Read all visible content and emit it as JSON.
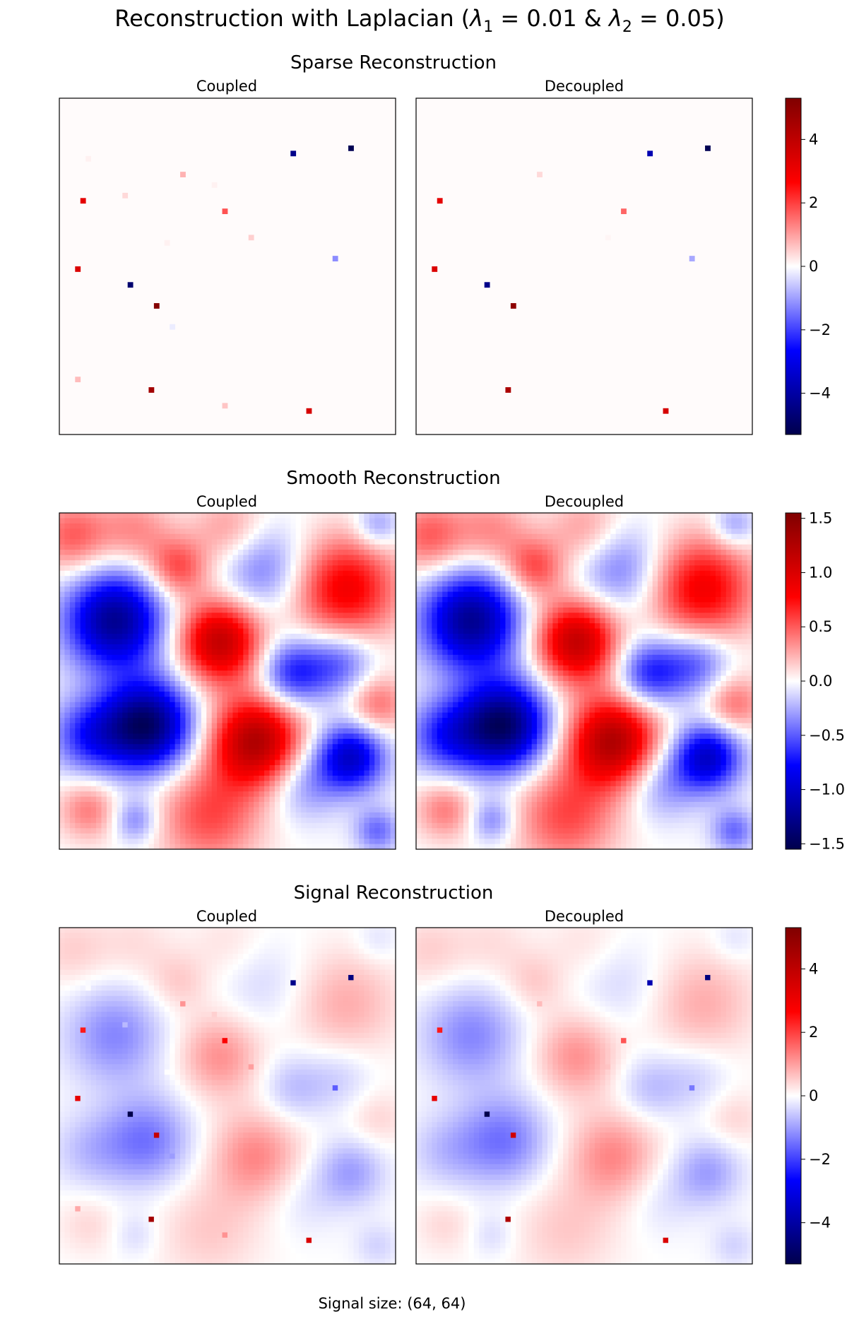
{
  "figure": {
    "title": "Reconstruction with Laplacian (λ₁ = 0.01 & λ₂ = 0.05)",
    "title_prefix": "Reconstruction with Laplacian (",
    "lambda_symbol": "λ",
    "lambda1_sub": "1",
    "lambda1_eq": " = 0.01 & ",
    "lambda2_sub": "2",
    "lambda2_eq": " = 0.05)",
    "footer": "Signal size: (64, 64)"
  },
  "colors": {
    "colormap": "seismic",
    "stops": [
      "#00004c",
      "#0000ff",
      "#ffffff",
      "#ff0000",
      "#800000"
    ],
    "sparse_background": "#fffbfb"
  },
  "chart_data": [
    {
      "type": "heatmap",
      "title": "Sparse Reconstruction",
      "grid_size": [
        64,
        64
      ],
      "panels": [
        {
          "title": "Coupled",
          "spikes": [
            {
              "x": 4,
              "y": 19,
              "value": 3.2
            },
            {
              "x": 3,
              "y": 32,
              "value": 3.4
            },
            {
              "x": 13,
              "y": 35,
              "value": -4.8
            },
            {
              "x": 18,
              "y": 39,
              "value": 5.2
            },
            {
              "x": 17,
              "y": 55,
              "value": 4.6
            },
            {
              "x": 31,
              "y": 21,
              "value": 1.8
            },
            {
              "x": 44,
              "y": 10,
              "value": -4.4
            },
            {
              "x": 55,
              "y": 9,
              "value": -5.2
            },
            {
              "x": 52,
              "y": 30,
              "value": -1.2
            },
            {
              "x": 47,
              "y": 59,
              "value": 3.5
            },
            {
              "x": 23,
              "y": 14,
              "value": 0.8
            },
            {
              "x": 12,
              "y": 18,
              "value": 0.4
            },
            {
              "x": 36,
              "y": 26,
              "value": 0.5
            },
            {
              "x": 3,
              "y": 53,
              "value": 0.7
            },
            {
              "x": 31,
              "y": 58,
              "value": 0.6
            },
            {
              "x": 21,
              "y": 43,
              "value": -0.2
            },
            {
              "x": 5,
              "y": 11,
              "value": 0.15
            },
            {
              "x": 29,
              "y": 16,
              "value": 0.15
            },
            {
              "x": 20,
              "y": 27,
              "value": 0.15
            }
          ]
        },
        {
          "title": "Decoupled",
          "spikes": [
            {
              "x": 4,
              "y": 19,
              "value": 3.2
            },
            {
              "x": 3,
              "y": 32,
              "value": 3.4
            },
            {
              "x": 13,
              "y": 35,
              "value": -4.4
            },
            {
              "x": 18,
              "y": 39,
              "value": 5.0
            },
            {
              "x": 17,
              "y": 55,
              "value": 4.4
            },
            {
              "x": 39,
              "y": 21,
              "value": 1.6
            },
            {
              "x": 44,
              "y": 10,
              "value": -3.8
            },
            {
              "x": 55,
              "y": 9,
              "value": -5.2
            },
            {
              "x": 52,
              "y": 30,
              "value": -0.9
            },
            {
              "x": 47,
              "y": 59,
              "value": 3.5
            },
            {
              "x": 23,
              "y": 14,
              "value": 0.4
            },
            {
              "x": 36,
              "y": 26,
              "value": 0.1
            }
          ]
        }
      ],
      "colorbar": {
        "vmin": -5.3,
        "vmax": 5.3,
        "ticks": [
          -4,
          -2,
          0,
          2,
          4
        ],
        "tick_labels": [
          "−4",
          "−2",
          "0",
          "2",
          "4"
        ]
      }
    },
    {
      "type": "heatmap",
      "title": "Smooth Reconstruction",
      "grid_size": [
        64,
        64
      ],
      "panels": [
        {
          "title": "Coupled",
          "scale": 1.0
        },
        {
          "title": "Decoupled",
          "scale": 1.0
        }
      ],
      "blobs": [
        {
          "x": 10,
          "y": 20,
          "value": -1.25,
          "sigma": 6.5
        },
        {
          "x": 16,
          "y": 40,
          "value": -1.45,
          "sigma": 6
        },
        {
          "x": 5,
          "y": 42,
          "value": -0.6,
          "sigma": 5
        },
        {
          "x": 30,
          "y": 24,
          "value": 1.15,
          "sigma": 5.5
        },
        {
          "x": 37,
          "y": 43,
          "value": 1.25,
          "sigma": 6
        },
        {
          "x": 54,
          "y": 14,
          "value": 0.85,
          "sigma": 7
        },
        {
          "x": 22,
          "y": 10,
          "value": 0.55,
          "sigma": 4
        },
        {
          "x": 38,
          "y": 10,
          "value": -0.45,
          "sigma": 6
        },
        {
          "x": 44,
          "y": 30,
          "value": -0.7,
          "sigma": 4.5
        },
        {
          "x": 53,
          "y": 28,
          "value": -0.5,
          "sigma": 4.5
        },
        {
          "x": 55,
          "y": 46,
          "value": -1.0,
          "sigma": 4.5
        },
        {
          "x": 46,
          "y": 51,
          "value": -0.35,
          "sigma": 5
        },
        {
          "x": 28,
          "y": 57,
          "value": 0.55,
          "sigma": 7
        },
        {
          "x": 14,
          "y": 58,
          "value": -0.4,
          "sigma": 3
        },
        {
          "x": 5,
          "y": 56,
          "value": 0.4,
          "sigma": 4
        },
        {
          "x": 2,
          "y": 4,
          "value": 0.5,
          "sigma": 5
        },
        {
          "x": 14,
          "y": 3,
          "value": 0.35,
          "sigma": 5
        },
        {
          "x": 60,
          "y": 36,
          "value": 0.45,
          "sigma": 4
        },
        {
          "x": 60,
          "y": 60,
          "value": -0.45,
          "sigma": 3
        },
        {
          "x": 60,
          "y": 2,
          "value": -0.35,
          "sigma": 3
        },
        {
          "x": 32,
          "y": 3,
          "value": 0.35,
          "sigma": 5
        }
      ],
      "colorbar": {
        "vmin": -1.55,
        "vmax": 1.55,
        "ticks": [
          -1.5,
          -1.0,
          -0.5,
          0.0,
          0.5,
          1.0,
          1.5
        ],
        "tick_labels": [
          "−1.5",
          "−1.0",
          "−0.5",
          "0.0",
          "0.5",
          "1.0",
          "1.5"
        ]
      }
    },
    {
      "type": "heatmap",
      "title": "Signal Reconstruction",
      "grid_size": [
        64,
        64
      ],
      "composition": "smooth + sparse",
      "panels": [
        {
          "title": "Coupled"
        },
        {
          "title": "Decoupled"
        }
      ],
      "colorbar": {
        "vmin": -5.3,
        "vmax": 5.3,
        "ticks": [
          -4,
          -2,
          0,
          2,
          4
        ],
        "tick_labels": [
          "−4",
          "−2",
          "0",
          "2",
          "4"
        ]
      }
    }
  ]
}
